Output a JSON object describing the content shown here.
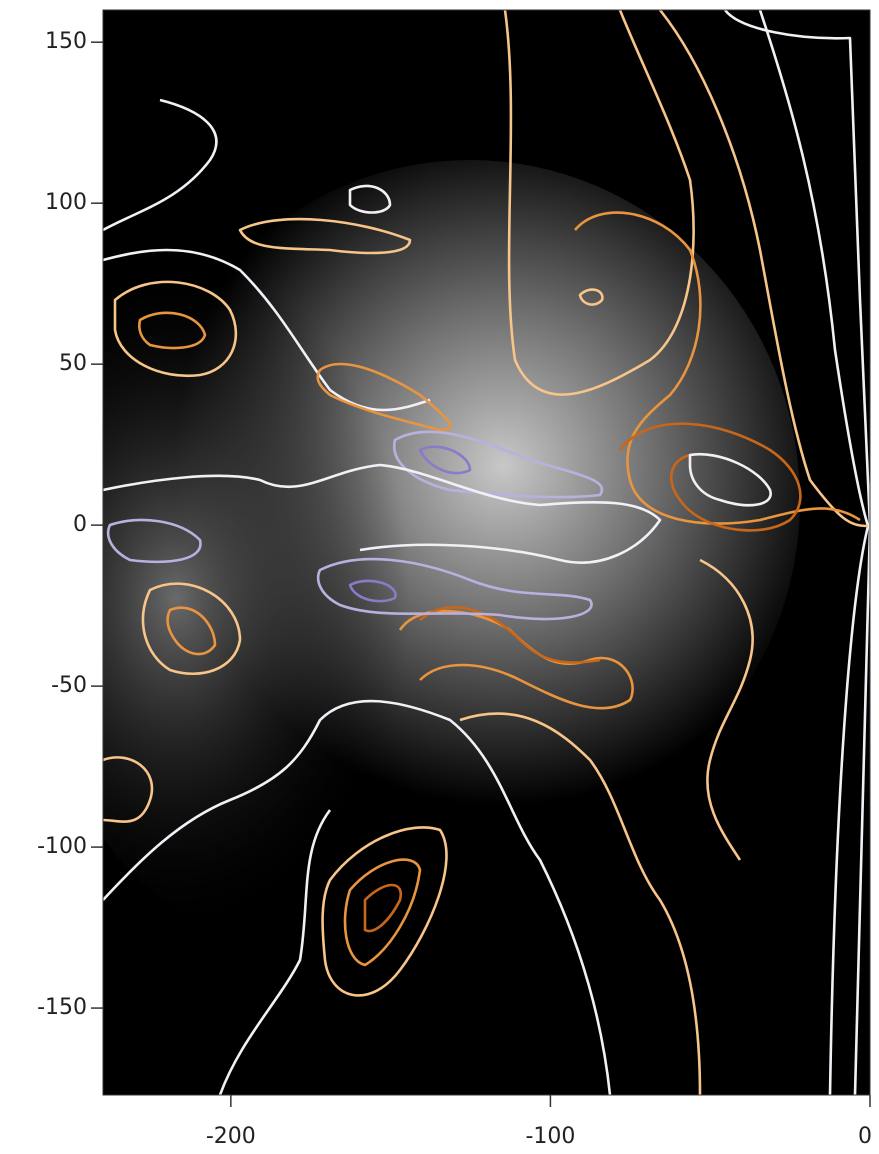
{
  "chart_data": {
    "type": "contour",
    "xlim": [
      -240,
      0
    ],
    "xticks": [
      -200,
      -100,
      0
    ],
    "ylim": [
      -177,
      160
    ],
    "yticks": [
      -150,
      -100,
      -50,
      0,
      50,
      100,
      150
    ]
  }
}
